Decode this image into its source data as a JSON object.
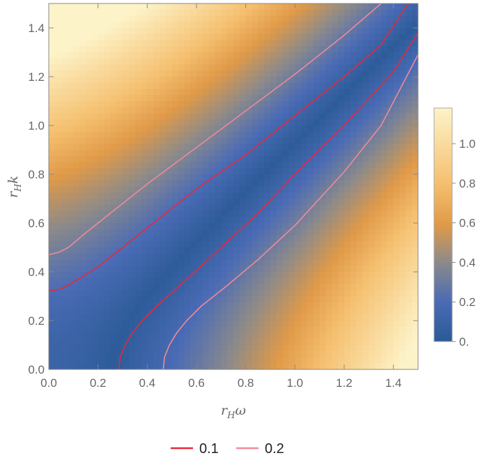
{
  "chart_data": {
    "type": "heatmap",
    "title": "",
    "xlabel": {
      "base": "r",
      "subscript": "H",
      "symbol": "ω"
    },
    "ylabel": {
      "base": "r",
      "subscript": "H",
      "symbol": "k"
    },
    "xlim": [
      0,
      1.5
    ],
    "ylim": [
      0,
      1.5
    ],
    "xticks": [
      "0.0",
      "0.2",
      "0.4",
      "0.6",
      "0.8",
      "1.0",
      "1.2",
      "1.4"
    ],
    "yticks": [
      "0.0",
      "0.2",
      "0.4",
      "0.6",
      "0.8",
      "1.0",
      "1.2",
      "1.4"
    ],
    "x_tick_values": [
      0,
      0.2,
      0.4,
      0.6,
      0.8,
      1.0,
      1.2,
      1.4
    ],
    "y_tick_values": [
      0,
      0.2,
      0.4,
      0.6,
      0.8,
      1.0,
      1.2,
      1.4
    ],
    "colorbar": {
      "range": [
        0,
        1.18
      ],
      "tick_labels": [
        "0.",
        "0.2",
        "0.4",
        "0.6",
        "0.8",
        "1.0"
      ],
      "tick_values": [
        0,
        0.2,
        0.4,
        0.6,
        0.8,
        1.0
      ],
      "colors": [
        "#2a5a96",
        "#4a6bb5",
        "#8c8a8a",
        "#e09a48",
        "#f5c070",
        "#fdf3c8"
      ]
    },
    "contours": [
      {
        "name": "0.1",
        "color": "#e8283a",
        "branches": [
          {
            "points": [
              [
                0,
                0.32
              ],
              [
                0.05,
                0.33
              ],
              [
                0.12,
                0.37
              ],
              [
                0.2,
                0.42
              ],
              [
                0.3,
                0.5
              ],
              [
                0.45,
                0.62
              ],
              [
                0.6,
                0.74
              ],
              [
                0.8,
                0.88
              ],
              [
                1.0,
                1.04
              ],
              [
                1.2,
                1.2
              ],
              [
                1.35,
                1.33
              ],
              [
                1.46,
                1.5
              ]
            ]
          },
          {
            "points": [
              [
                0.285,
                0
              ],
              [
                0.29,
                0.05
              ],
              [
                0.31,
                0.1
              ],
              [
                0.34,
                0.15
              ],
              [
                0.38,
                0.2
              ],
              [
                0.45,
                0.27
              ],
              [
                0.55,
                0.36
              ],
              [
                0.7,
                0.5
              ],
              [
                0.85,
                0.64
              ],
              [
                1.0,
                0.8
              ],
              [
                1.2,
                1.0
              ],
              [
                1.4,
                1.22
              ],
              [
                1.5,
                1.38
              ]
            ]
          }
        ]
      },
      {
        "name": "0.2",
        "color": "#f08a96",
        "branches": [
          {
            "points": [
              [
                0,
                0.47
              ],
              [
                0.04,
                0.48
              ],
              [
                0.08,
                0.5
              ],
              [
                0.15,
                0.56
              ],
              [
                0.25,
                0.64
              ],
              [
                0.4,
                0.76
              ],
              [
                0.6,
                0.91
              ],
              [
                0.8,
                1.06
              ],
              [
                1.0,
                1.21
              ],
              [
                1.2,
                1.37
              ],
              [
                1.35,
                1.5
              ]
            ]
          },
          {
            "points": [
              [
                0.465,
                0
              ],
              [
                0.47,
                0.05
              ],
              [
                0.49,
                0.1
              ],
              [
                0.52,
                0.15
              ],
              [
                0.56,
                0.2
              ],
              [
                0.62,
                0.26
              ],
              [
                0.72,
                0.34
              ],
              [
                0.85,
                0.45
              ],
              [
                1.0,
                0.59
              ],
              [
                1.2,
                0.81
              ],
              [
                1.35,
                1.0
              ],
              [
                1.5,
                1.29
              ]
            ]
          }
        ]
      }
    ],
    "legend": {
      "position": "bottom-center",
      "entries": [
        "0.1",
        "0.2"
      ]
    }
  }
}
